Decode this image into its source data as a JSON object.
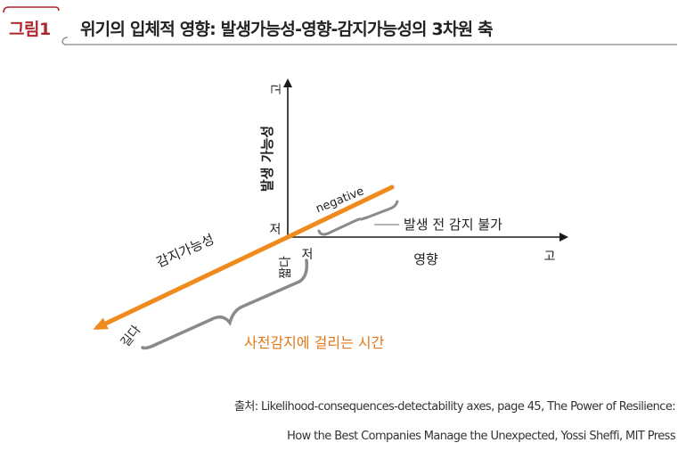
{
  "header": {
    "tag_label": "그림1",
    "title": "위기의 입체적 영향: 발생가능성-영향-감지가능성의 3차원 축"
  },
  "diagram": {
    "y_axis": {
      "label": "발생 가능성",
      "high": "고",
      "low": "저"
    },
    "x_axis": {
      "label": "영향",
      "high": "고",
      "low": "저"
    },
    "z_axis": {
      "label": "감지가능성",
      "short": "짧다",
      "long": "길다"
    },
    "negative_label": "negative",
    "undetected_label": "발생 전 감지 불가",
    "detection_time_label": "사전감지에 걸리는 시간",
    "colors": {
      "accent": "#f08a1c",
      "brace": "#8a8a8a",
      "axis": "#1a1a1a",
      "tag": "#b0262b"
    }
  },
  "source": {
    "prefix": "출처:",
    "line1": "Likelihood-consequences-detectability axes, page 45, The Power of Resilience:",
    "line2": "How the Best Companies Manage the Unexpected, Yossi Sheffi, MIT Press"
  }
}
